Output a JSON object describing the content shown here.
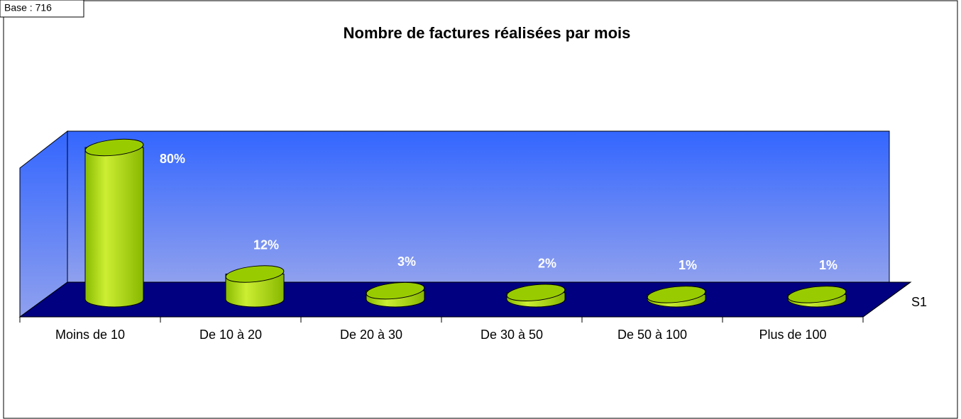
{
  "chart_data": {
    "type": "bar",
    "title": "Nombre de factures réalisées par mois",
    "annotation": "Base : 716",
    "categories": [
      "Moins de 10",
      "De 10 à 20",
      "De 20 à 30",
      "De 30 à 50",
      "De 50 à 100",
      "Plus de 100"
    ],
    "series": [
      {
        "name": "S1",
        "color": "#99cc00",
        "values": [
          80,
          12,
          3,
          2,
          1,
          1
        ],
        "value_labels": [
          "80%",
          "12%",
          "3%",
          "2%",
          "1%",
          "1%"
        ]
      }
    ],
    "ylim": [
      0,
      100
    ]
  }
}
